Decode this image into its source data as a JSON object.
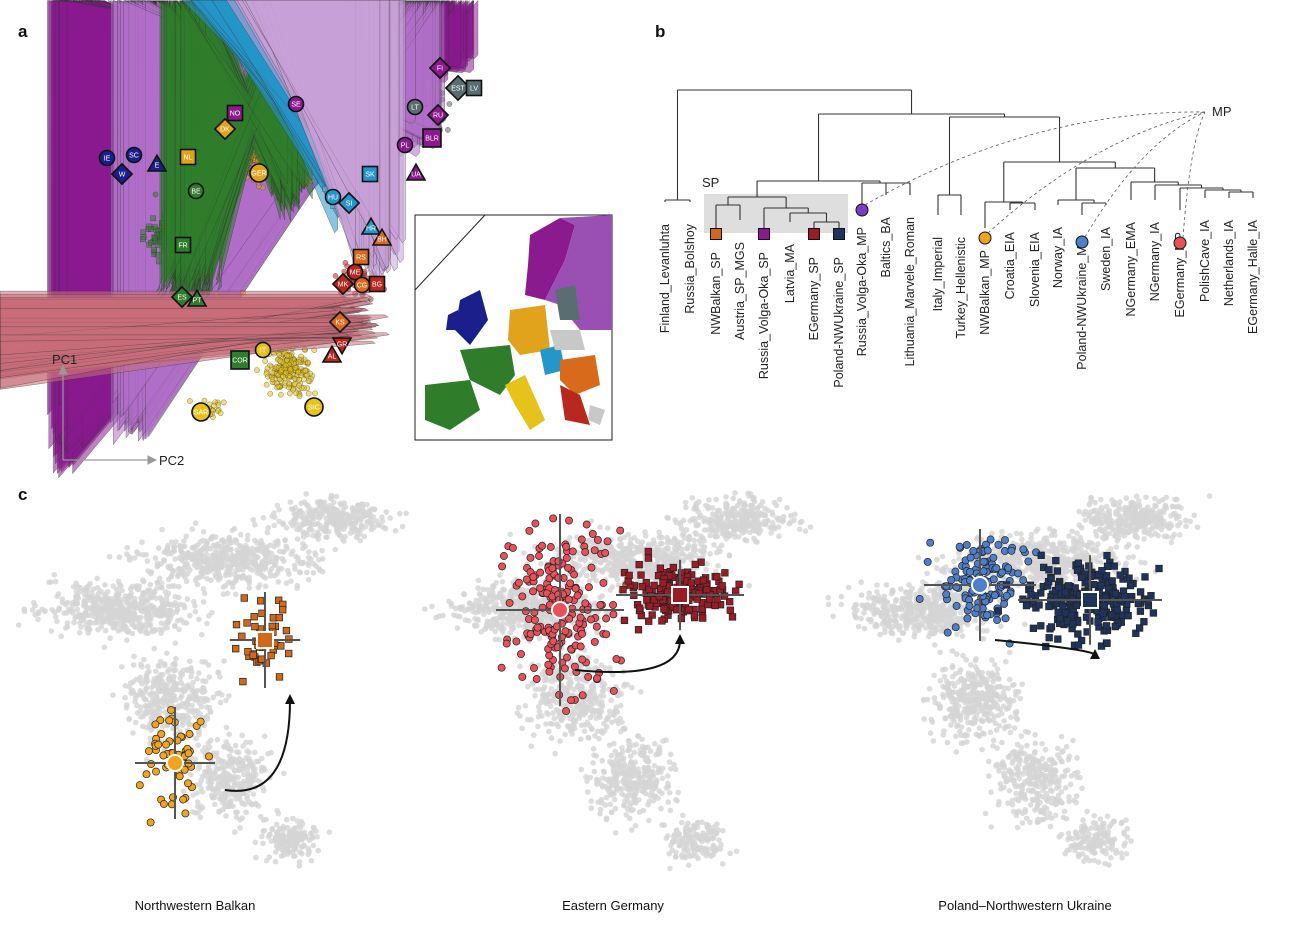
{
  "header_cut_text": "· · ·",
  "panel_labels": {
    "a": "a",
    "b": "b",
    "c": "c"
  },
  "panel_a": {
    "axis_y": "PC1",
    "axis_x": "PC2",
    "populations": [
      "IE",
      "SC",
      "W",
      "E",
      "NL",
      "NO",
      "DK",
      "SE",
      "FI",
      "EST",
      "LV",
      "LT",
      "RU",
      "BLR",
      "PL",
      "UA",
      "SK",
      "HU",
      "SI",
      "GER",
      "BE",
      "HR",
      "BH",
      "FR",
      "RS",
      "ME",
      "MK",
      "CG",
      "BG",
      "ES",
      "PT",
      "KS",
      "GR",
      "AL",
      "IT",
      "COR",
      "SAR",
      "SIC"
    ],
    "colors": {
      "navy": "#1a1f8c",
      "purple": "#8b1a8f",
      "slate": "#5a6e72",
      "gold": "#e2a31c",
      "green": "#2f7d2b",
      "yellow": "#e6c21a",
      "blue": "#2596c9",
      "orange": "#d86a1c",
      "red": "#b8281e",
      "lilac": "#9a5bd0"
    }
  },
  "panel_b": {
    "group_sp": "SP",
    "group_mp": "MP",
    "leaves": [
      "Finland_Levanluhta",
      "Russia_Bolshoy",
      "NWBalkan_SP",
      "Austria_SP_MGS",
      "Russia_Volga-Oka_SP",
      "Latvia_MA",
      "EGermany_SP",
      "Poland-NWUkraine_SP",
      "Russia_Volga-Oka_MP",
      "Baltics_BA",
      "Lithuania_Marvele_Roman",
      "Italy_Imperial",
      "Turkey_Hellenistic",
      "NWBalkan_MP",
      "Croatia_EIA",
      "Slovenia_EIA",
      "Norway_IA",
      "Poland-NWUkraine_MP",
      "Sweden_IA",
      "NGermany_EMA",
      "NGermany_IA",
      "EGermany_MP",
      "PolishCave_IA",
      "Netherlands_IA",
      "EGermany_Halle_IA"
    ]
  },
  "panel_c": {
    "plots": [
      {
        "title": "Northwestern Balkan",
        "mp_color": "#f0a31c",
        "sp_color": "#d2691a"
      },
      {
        "title": "Eastern Germany",
        "mp_color": "#e8505a",
        "sp_color": "#9b1c26"
      },
      {
        "title": "Poland–Northwestern Ukraine",
        "mp_color": "#4f7fc8",
        "sp_color": "#1f335c"
      }
    ]
  }
}
